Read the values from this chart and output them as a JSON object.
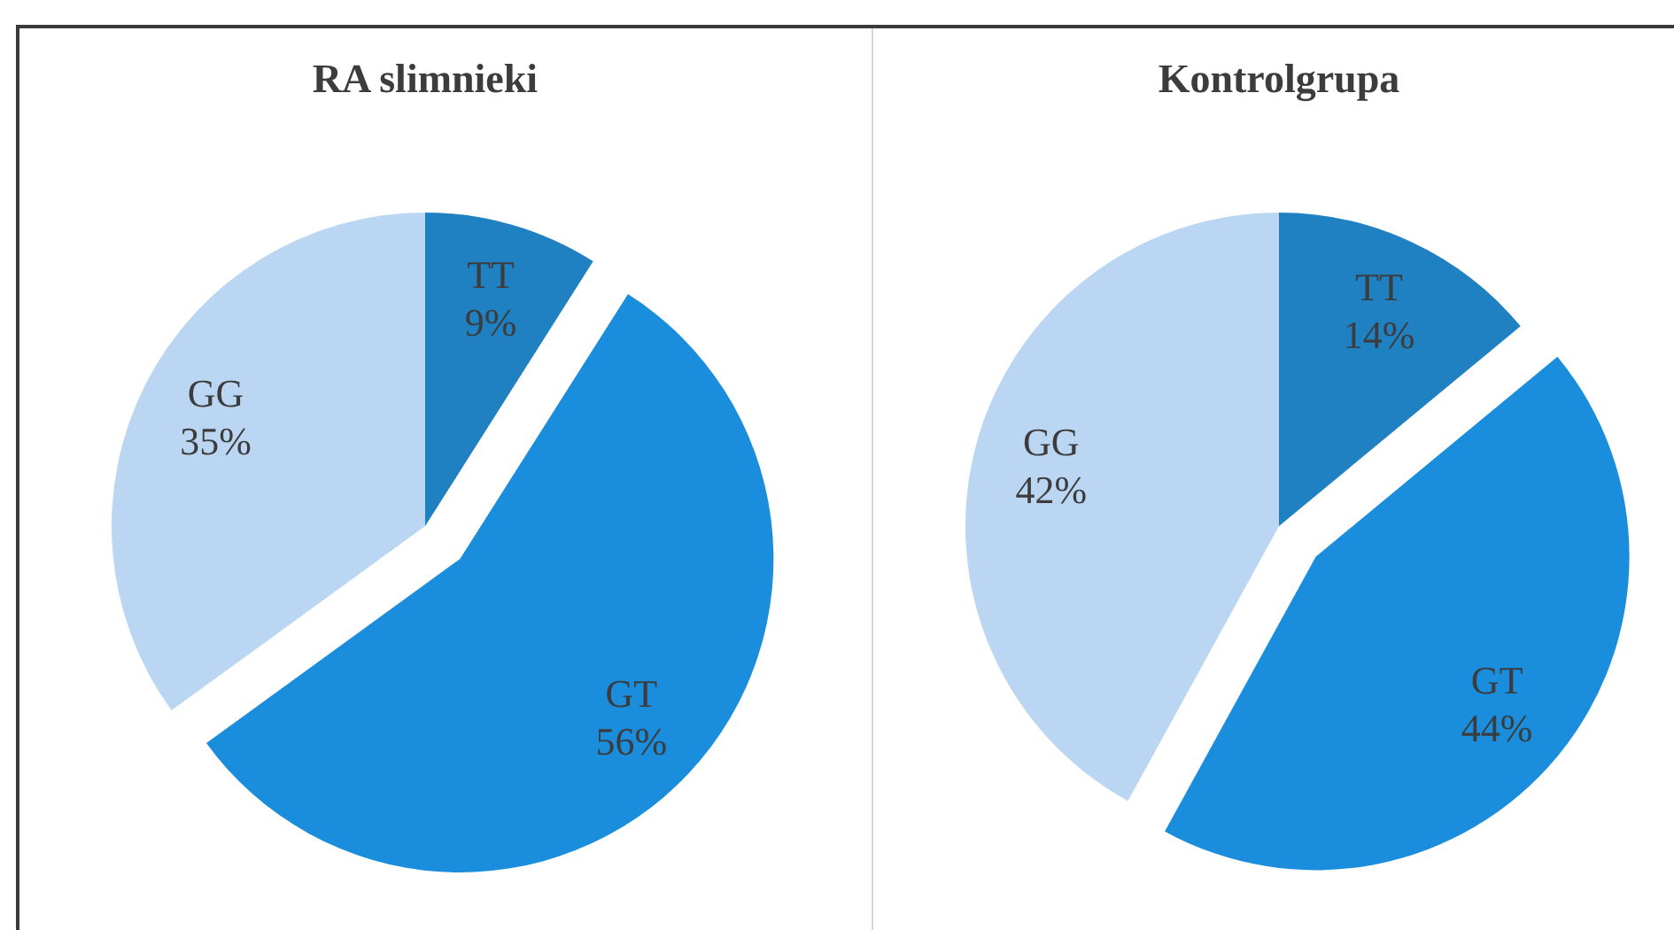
{
  "chart_data": [
    {
      "type": "pie",
      "title": "RA slimnieki",
      "categories": [
        "TT",
        "GT",
        "GG"
      ],
      "values": [
        9,
        56,
        35
      ],
      "colors": [
        "#1f80c2",
        "#1a8edc",
        "#bad6f2"
      ],
      "value_labels": [
        "9%",
        "56%",
        "35%"
      ],
      "legend": false
    },
    {
      "type": "pie",
      "title": "Kontrolgrupa",
      "categories": [
        "TT",
        "GT",
        "GG"
      ],
      "values": [
        14,
        44,
        42
      ],
      "colors": [
        "#1f80c2",
        "#1a8edc",
        "#bad6f2"
      ],
      "value_labels": [
        "14%",
        "44%",
        "42%"
      ],
      "legend": false
    }
  ]
}
